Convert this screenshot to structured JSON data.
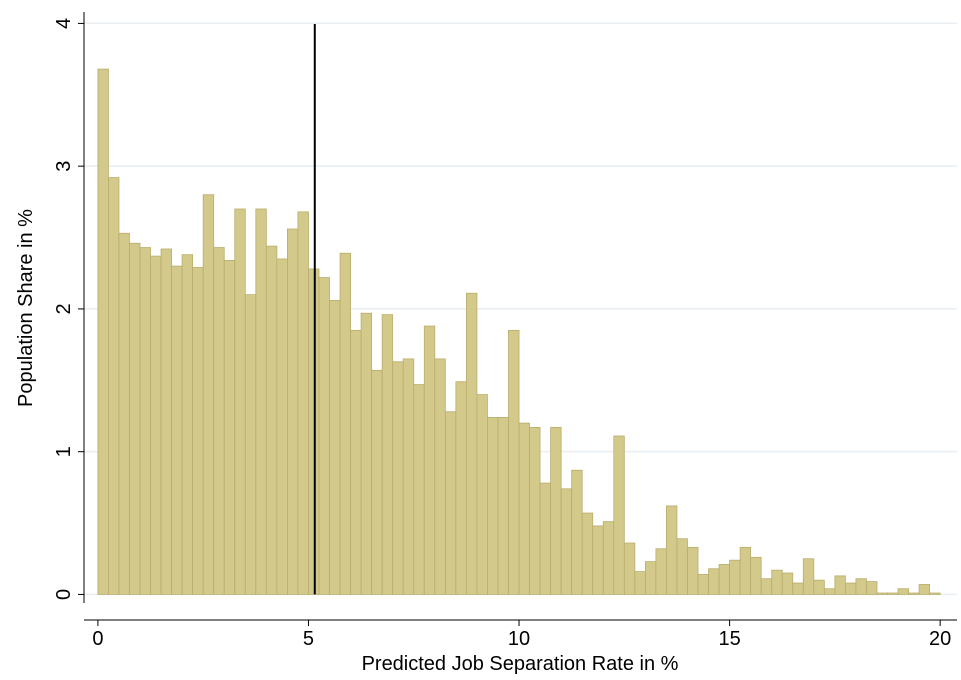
{
  "chart_data": {
    "type": "histogram",
    "xlabel": "Predicted Job Separation Rate in %",
    "ylabel": "Population Share in %",
    "bins": [
      0,
      0.25,
      0.5,
      0.75,
      1,
      1.25,
      1.5,
      1.75,
      2,
      2.25,
      2.5,
      2.75,
      3,
      3.25,
      3.5,
      3.75,
      4,
      4.25,
      4.5,
      4.75,
      5,
      5.25,
      5.5,
      5.75,
      6,
      6.25,
      6.5,
      6.75,
      7,
      7.25,
      7.5,
      7.75,
      8,
      8.25,
      8.5,
      8.75,
      9,
      9.25,
      9.5,
      9.75,
      10,
      10.25,
      10.5,
      10.75,
      11,
      11.25,
      11.5,
      11.75,
      12,
      12.25,
      12.5,
      12.75,
      13,
      13.25,
      13.5,
      13.75,
      14,
      14.25,
      14.5,
      14.75,
      15,
      15.25,
      15.5,
      15.75,
      16,
      16.25,
      16.5,
      16.75,
      17,
      17.25,
      17.5,
      17.75,
      18,
      18.25,
      18.5,
      18.75,
      19,
      19.25,
      19.5,
      19.75,
      20
    ],
    "values": [
      3.68,
      2.92,
      2.53,
      2.46,
      2.43,
      2.37,
      2.42,
      2.3,
      2.38,
      2.29,
      2.8,
      2.43,
      2.34,
      2.7,
      2.1,
      2.7,
      2.44,
      2.35,
      2.56,
      2.68,
      2.28,
      2.22,
      2.06,
      2.39,
      1.85,
      1.97,
      1.57,
      1.96,
      1.63,
      1.65,
      1.47,
      1.88,
      1.65,
      1.28,
      1.49,
      2.11,
      1.4,
      1.24,
      1.24,
      1.85,
      1.2,
      1.17,
      0.78,
      1.17,
      0.74,
      0.87,
      0.57,
      0.48,
      0.51,
      1.11,
      0.36,
      0.16,
      0.23,
      0.32,
      0.62,
      0.39,
      0.33,
      0.14,
      0.18,
      0.21,
      0.24,
      0.33,
      0.26,
      0.11,
      0.17,
      0.15,
      0.08,
      0.25,
      0.1,
      0.04,
      0.13,
      0.08,
      0.11,
      0.09,
      0.01,
      0.01,
      0.04,
      0.01,
      0.07,
      0.01
    ],
    "color": "#d3c98b",
    "reference_line": 5.15,
    "xlim": [
      -0.33,
      20.4
    ],
    "ylim": [
      -0.06,
      4.08
    ],
    "xticks": [
      0,
      5,
      10,
      15,
      20
    ],
    "yticks": [
      0,
      1,
      2,
      3,
      4
    ],
    "grid": true
  }
}
